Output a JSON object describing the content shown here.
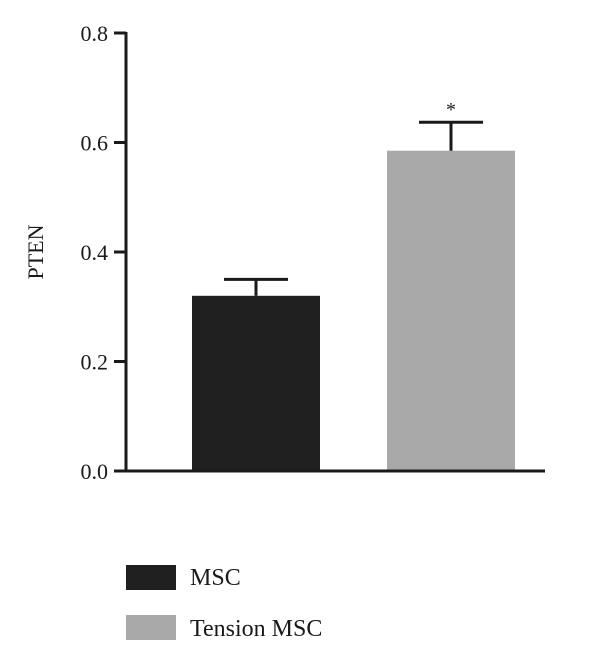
{
  "chart_data": {
    "type": "bar",
    "categories": [
      "MSC",
      "Tension MSC"
    ],
    "series": [
      {
        "values": [
          0.32,
          0.585
        ],
        "errors": [
          0.03,
          0.052
        ]
      }
    ],
    "colors": [
      "#202020",
      "#a9a9a9"
    ],
    "ylabel": "PTEN",
    "ylim": [
      0,
      0.8
    ],
    "yticks": [
      "0.0",
      "0.2",
      "0.4",
      "0.6",
      "0.8"
    ],
    "annotations": [
      {
        "category": "Tension MSC",
        "text": "*"
      }
    ],
    "legend": {
      "position": "bottom-left",
      "entries": [
        {
          "label": "MSC",
          "color": "#202020"
        },
        {
          "label": "Tension MSC",
          "color": "#a9a9a9"
        }
      ]
    },
    "grid": false
  }
}
